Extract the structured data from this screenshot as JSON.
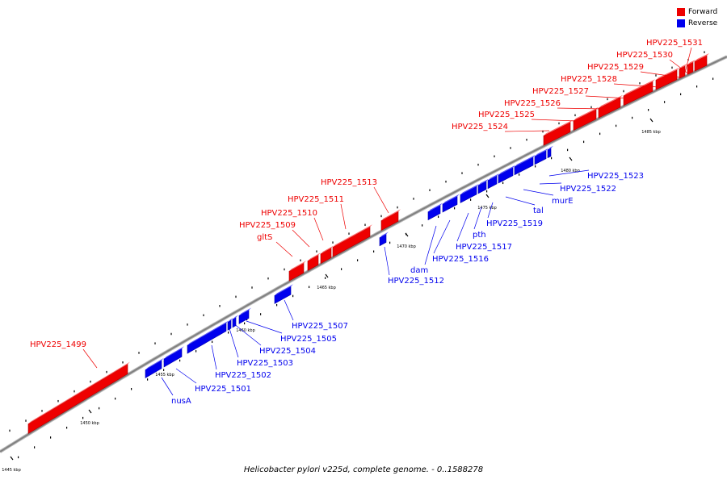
{
  "caption": "Helicobacter pylori v225d, complete genome. - 0..1588278",
  "colors": {
    "forward": "#ee0000",
    "reverse": "#0000ee",
    "backbone": "#808080",
    "leader": "#000000"
  },
  "legend": {
    "forward_label": "Forward",
    "reverse_label": "Reverse"
  },
  "kbp_ticks": [
    {
      "label": "1445 kbp",
      "value": 1445
    },
    {
      "label": "1450 kbp",
      "value": 1450
    },
    {
      "label": "1455 kbp",
      "value": 1455
    },
    {
      "label": "1460 kbp",
      "value": 1460
    },
    {
      "label": "1465 kbp",
      "value": 1465
    },
    {
      "label": "1470 kbp",
      "value": 1470
    },
    {
      "label": "1475 kbp",
      "value": 1475
    },
    {
      "label": "1480 kbp",
      "value": 1480
    },
    {
      "label": "1485 kbp",
      "value": 1485
    }
  ],
  "genes": [
    {
      "name": "HPV225_1499",
      "strand": "forward"
    },
    {
      "name": "nusA",
      "strand": "reverse"
    },
    {
      "name": "HPV225_1501",
      "strand": "reverse"
    },
    {
      "name": "HPV225_1502",
      "strand": "reverse"
    },
    {
      "name": "HPV225_1503",
      "strand": "reverse"
    },
    {
      "name": "HPV225_1504",
      "strand": "reverse"
    },
    {
      "name": "HPV225_1505",
      "strand": "reverse"
    },
    {
      "name": "HPV225_1507",
      "strand": "reverse"
    },
    {
      "name": "gltS",
      "strand": "forward"
    },
    {
      "name": "HPV225_1509",
      "strand": "forward"
    },
    {
      "name": "HPV225_1510",
      "strand": "forward"
    },
    {
      "name": "HPV225_1511",
      "strand": "forward"
    },
    {
      "name": "HPV225_1512",
      "strand": "reverse"
    },
    {
      "name": "HPV225_1513",
      "strand": "forward"
    },
    {
      "name": "dam",
      "strand": "reverse"
    },
    {
      "name": "HPV225_1516",
      "strand": "reverse"
    },
    {
      "name": "HPV225_1517",
      "strand": "reverse"
    },
    {
      "name": "pth",
      "strand": "reverse"
    },
    {
      "name": "HPV225_1519",
      "strand": "reverse"
    },
    {
      "name": "tal",
      "strand": "reverse"
    },
    {
      "name": "murE",
      "strand": "reverse"
    },
    {
      "name": "HPV225_1522",
      "strand": "reverse"
    },
    {
      "name": "HPV225_1523",
      "strand": "reverse"
    },
    {
      "name": "HPV225_1524",
      "strand": "forward"
    },
    {
      "name": "HPV225_1525",
      "strand": "forward"
    },
    {
      "name": "HPV225_1526",
      "strand": "forward"
    },
    {
      "name": "HPV225_1527",
      "strand": "forward"
    },
    {
      "name": "HPV225_1528",
      "strand": "forward"
    },
    {
      "name": "HPV225_1529",
      "strand": "forward"
    },
    {
      "name": "HPV225_1530",
      "strand": "forward"
    },
    {
      "name": "HPV225_1531",
      "strand": "forward"
    }
  ]
}
